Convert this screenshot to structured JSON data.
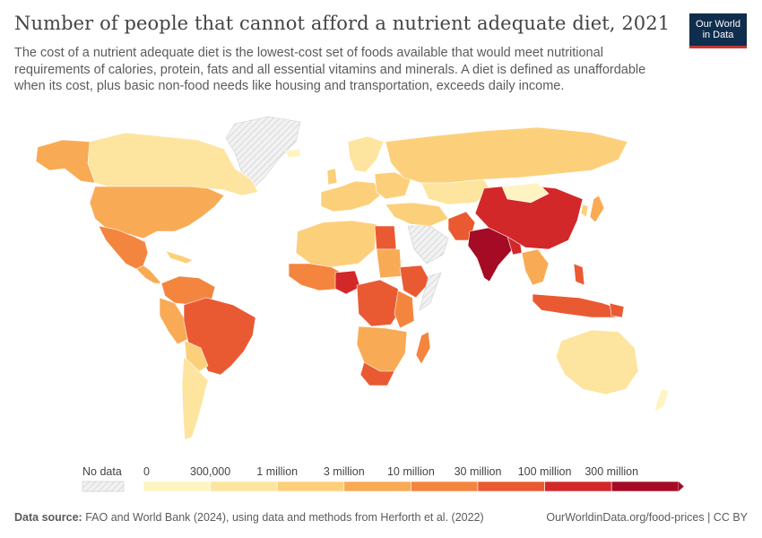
{
  "header": {
    "title": "Number of people that cannot afford a nutrient adequate diet, 2021",
    "subtitle": "The cost of a nutrient adequate diet is the lowest-cost set of foods available that would meet nutritional requirements of calories, protein, fats and all essential vitamins and minerals. A diet is defined as unaffordable when its cost, plus basic non-food needs like housing and transportation, exceeds daily income."
  },
  "logo": {
    "line1": "Our World",
    "line2": "in Data"
  },
  "legend": {
    "no_data_label": "No data",
    "bins": [
      "0",
      "300,000",
      "1 million",
      "3 million",
      "10 million",
      "30 million",
      "100 million",
      "300 million"
    ],
    "colors": [
      "#fef4c3",
      "#fde5a0",
      "#fcd07b",
      "#f9aa55",
      "#f4853f",
      "#ea5a32",
      "#d2282a",
      "#a50b24"
    ]
  },
  "footer": {
    "source_label": "Data source:",
    "source_text": "FAO and World Bank (2024), using data and methods from Herforth et al. (2022)",
    "link": "OurWorldinData.org/food-prices",
    "license": "CC BY"
  }
}
